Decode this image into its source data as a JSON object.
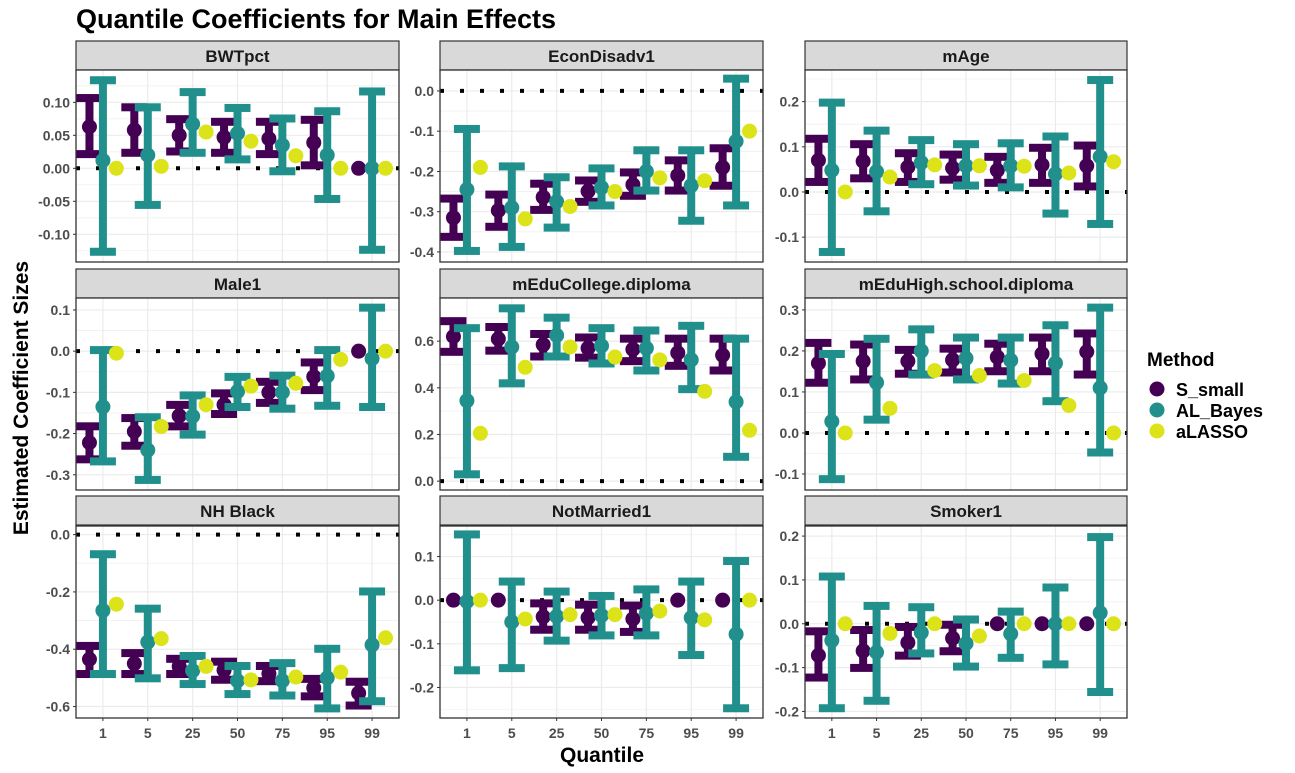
{
  "chart_data": {
    "type": "errorbar-facet",
    "title": "Quantile Coefficients for Main Effects",
    "xlabel": "Quantile",
    "ylabel": "Estimated Coefficient Sizes",
    "categories": [
      "1",
      "5",
      "25",
      "50",
      "75",
      "95",
      "99"
    ],
    "reference_line": 0,
    "grid": true,
    "legend": {
      "title": "Method",
      "position": "right",
      "entries": [
        {
          "name": "S_small",
          "color": "#440154"
        },
        {
          "name": "AL_Bayes",
          "color": "#21908C"
        },
        {
          "name": "aLASSO",
          "color": "#DCE319"
        }
      ]
    },
    "panels": [
      {
        "name": "BWTpct",
        "ylim": [
          -0.142,
          0.149
        ],
        "yticks": [
          0.1,
          0.05,
          0.0,
          -0.05,
          -0.1
        ],
        "ytick_labels": [
          "0.10",
          "0.05",
          "0.00",
          "-0.05",
          "-0.10"
        ],
        "series": [
          {
            "name": "S_small",
            "est": [
              0.063,
              0.058,
              0.05,
              0.047,
              0.045,
              0.039,
              0.0
            ],
            "lo": [
              0.02,
              0.022,
              0.024,
              0.022,
              0.02,
              0.003,
              null
            ],
            "hi": [
              0.108,
              0.094,
              0.076,
              0.072,
              0.072,
              0.075,
              null
            ]
          },
          {
            "name": "AL_Bayes",
            "est": [
              0.012,
              0.02,
              0.067,
              0.053,
              0.035,
              0.02,
              0.0
            ],
            "lo": [
              -0.128,
              -0.057,
              0.022,
              0.012,
              -0.006,
              -0.048,
              -0.125
            ],
            "hi": [
              0.135,
              0.094,
              0.117,
              0.093,
              0.077,
              0.088,
              0.118
            ]
          },
          {
            "name": "aLASSO",
            "est": [
              0.0,
              0.003,
              0.055,
              0.041,
              0.019,
              0.0,
              0.0
            ]
          }
        ]
      },
      {
        "name": "EconDisadv1",
        "ylim": [
          -0.425,
          0.052
        ],
        "yticks": [
          0.0,
          -0.1,
          -0.2,
          -0.3,
          -0.4
        ],
        "ytick_labels": [
          "0.0",
          "-0.1",
          "-0.2",
          "-0.3",
          "-0.4"
        ],
        "series": [
          {
            "name": "S_small",
            "est": [
              -0.315,
              -0.297,
              -0.264,
              -0.249,
              -0.233,
              -0.21,
              -0.19
            ],
            "lo": [
              -0.365,
              -0.34,
              -0.298,
              -0.278,
              -0.263,
              -0.25,
              -0.238
            ],
            "hi": [
              -0.265,
              -0.255,
              -0.228,
              -0.22,
              -0.2,
              -0.17,
              -0.14
            ]
          },
          {
            "name": "AL_Bayes",
            "est": [
              -0.245,
              -0.29,
              -0.275,
              -0.24,
              -0.2,
              -0.235,
              -0.125
            ],
            "lo": [
              -0.4,
              -0.39,
              -0.342,
              -0.287,
              -0.25,
              -0.325,
              -0.287
            ],
            "hi": [
              -0.092,
              -0.185,
              -0.212,
              -0.19,
              -0.145,
              -0.145,
              0.033
            ]
          },
          {
            "name": "aLASSO",
            "est": [
              -0.19,
              -0.318,
              -0.287,
              -0.25,
              -0.216,
              -0.223,
              -0.1
            ]
          }
        ]
      },
      {
        "name": "mAge",
        "ylim": [
          -0.155,
          0.27
        ],
        "yticks": [
          0.2,
          0.1,
          0.0,
          -0.1
        ],
        "ytick_labels": [
          "0.2",
          "0.1",
          "0.0",
          "-0.1"
        ],
        "series": [
          {
            "name": "S_small",
            "est": [
              0.07,
              0.068,
              0.055,
              0.053,
              0.048,
              0.06,
              0.058
            ],
            "lo": [
              0.02,
              0.028,
              0.02,
              0.025,
              0.018,
              0.018,
              0.01
            ],
            "hi": [
              0.12,
              0.108,
              0.088,
              0.085,
              0.08,
              0.1,
              0.105
            ]
          },
          {
            "name": "AL_Bayes",
            "est": [
              0.048,
              0.045,
              0.065,
              0.058,
              0.058,
              0.04,
              0.078
            ],
            "lo": [
              -0.135,
              -0.045,
              0.015,
              0.012,
              0.008,
              -0.05,
              -0.073
            ],
            "hi": [
              0.2,
              0.138,
              0.117,
              0.108,
              0.11,
              0.125,
              0.25
            ]
          },
          {
            "name": "aLASSO",
            "est": [
              0.0,
              0.033,
              0.06,
              0.058,
              0.057,
              0.042,
              0.067
            ]
          }
        ]
      },
      {
        "name": "Male1",
        "ylim": [
          -0.337,
          0.129
        ],
        "yticks": [
          0.1,
          0.0,
          -0.1,
          -0.2,
          -0.3
        ],
        "ytick_labels": [
          "0.1",
          "0.0",
          "-0.1",
          "-0.2",
          "-0.3"
        ],
        "series": [
          {
            "name": "S_small",
            "est": [
              -0.222,
              -0.195,
              -0.157,
              -0.13,
              -0.1,
              -0.062,
              0.0
            ],
            "lo": [
              -0.265,
              -0.232,
              -0.185,
              -0.155,
              -0.128,
              -0.097,
              null
            ],
            "hi": [
              -0.18,
              -0.16,
              -0.128,
              -0.1,
              -0.072,
              -0.025,
              null
            ]
          },
          {
            "name": "AL_Bayes",
            "est": [
              -0.135,
              -0.24,
              -0.158,
              -0.098,
              -0.1,
              -0.06,
              -0.018
            ],
            "lo": [
              -0.27,
              -0.315,
              -0.205,
              -0.138,
              -0.142,
              -0.135,
              -0.138
            ],
            "hi": [
              0.005,
              -0.158,
              -0.105,
              -0.06,
              -0.057,
              0.005,
              0.108
            ]
          },
          {
            "name": "aLASSO",
            "est": [
              -0.005,
              -0.183,
              -0.13,
              -0.085,
              -0.078,
              -0.02,
              0.0
            ]
          }
        ]
      },
      {
        "name": "mEduCollege.diploma",
        "ylim": [
          -0.038,
          0.785
        ],
        "yticks": [
          0.6,
          0.4,
          0.2,
          0.0
        ],
        "ytick_labels": [
          "0.6",
          "0.4",
          "0.2",
          "0.0"
        ],
        "series": [
          {
            "name": "S_small",
            "est": [
              0.62,
              0.61,
              0.585,
              0.57,
              0.565,
              0.55,
              0.54
            ],
            "lo": [
              0.55,
              0.555,
              0.53,
              0.525,
              0.51,
              0.49,
              0.47
            ],
            "hi": [
              0.69,
              0.665,
              0.635,
              0.62,
              0.615,
              0.615,
              0.615
            ]
          },
          {
            "name": "AL_Bayes",
            "est": [
              0.345,
              0.575,
              0.625,
              0.58,
              0.57,
              0.52,
              0.34
            ],
            "lo": [
              0.025,
              0.415,
              0.53,
              0.5,
              0.47,
              0.39,
              0.1
            ],
            "hi": [
              0.66,
              0.745,
              0.705,
              0.66,
              0.65,
              0.67,
              0.615
            ]
          },
          {
            "name": "aLASSO",
            "est": [
              0.205,
              0.488,
              0.575,
              0.532,
              0.52,
              0.385,
              0.218
            ]
          }
        ]
      },
      {
        "name": "mEduHigh.school.diploma",
        "ylim": [
          -0.139,
          0.329
        ],
        "yticks": [
          0.3,
          0.2,
          0.1,
          0.0,
          -0.1
        ],
        "ytick_labels": [
          "0.3",
          "0.2",
          "0.1",
          "0.0",
          "-0.1"
        ],
        "series": [
          {
            "name": "S_small",
            "est": [
              0.17,
              0.175,
              0.175,
              0.178,
              0.185,
              0.193,
              0.198
            ],
            "lo": [
              0.12,
              0.128,
              0.142,
              0.145,
              0.148,
              0.148,
              0.14
            ],
            "hi": [
              0.222,
              0.218,
              0.205,
              0.208,
              0.22,
              0.235,
              0.245
            ]
          },
          {
            "name": "AL_Bayes",
            "est": [
              0.028,
              0.123,
              0.2,
              0.182,
              0.177,
              0.17,
              0.11
            ],
            "lo": [
              -0.115,
              0.03,
              0.14,
              0.128,
              0.118,
              0.075,
              -0.05
            ],
            "hi": [
              0.195,
              0.232,
              0.255,
              0.235,
              0.235,
              0.265,
              0.308
            ]
          },
          {
            "name": "aLASSO",
            "est": [
              0.0,
              0.06,
              0.152,
              0.14,
              0.128,
              0.067,
              0.0
            ]
          }
        ]
      },
      {
        "name": "NH Black",
        "ylim": [
          -0.64,
          0.03
        ],
        "yticks": [
          0.0,
          -0.2,
          -0.4,
          -0.6
        ],
        "ytick_labels": [
          "0.0",
          "-0.2",
          "-0.4",
          "-0.6"
        ],
        "series": [
          {
            "name": "S_small",
            "est": [
              -0.435,
              -0.45,
              -0.46,
              -0.473,
              -0.485,
              -0.535,
              -0.553
            ],
            "lo": [
              -0.49,
              -0.49,
              -0.49,
              -0.51,
              -0.515,
              -0.568,
              -0.6
            ],
            "hi": [
              -0.385,
              -0.41,
              -0.43,
              -0.44,
              -0.455,
              -0.5,
              -0.51
            ]
          },
          {
            "name": "AL_Bayes",
            "est": [
              -0.265,
              -0.375,
              -0.475,
              -0.51,
              -0.51,
              -0.5,
              -0.385
            ],
            "lo": [
              -0.49,
              -0.505,
              -0.525,
              -0.56,
              -0.565,
              -0.61,
              -0.585
            ],
            "hi": [
              -0.065,
              -0.255,
              -0.42,
              -0.455,
              -0.445,
              -0.395,
              -0.195
            ]
          },
          {
            "name": "aLASSO",
            "est": [
              -0.243,
              -0.363,
              -0.46,
              -0.507,
              -0.497,
              -0.48,
              -0.36
            ]
          }
        ]
      },
      {
        "name": "NotMarried1",
        "ylim": [
          -0.27,
          0.17
        ],
        "yticks": [
          0.1,
          0.0,
          -0.1,
          -0.2
        ],
        "ytick_labels": [
          "0.1",
          "0.0",
          "-0.1",
          "-0.2"
        ],
        "series": [
          {
            "name": "S_small",
            "est": [
              0.0,
              0.0,
              -0.038,
              -0.04,
              -0.043,
              0.0,
              0.0
            ],
            "lo": [
              null,
              null,
              -0.07,
              -0.07,
              -0.075,
              null,
              null
            ],
            "hi": [
              null,
              null,
              -0.005,
              -0.008,
              -0.01,
              null,
              null
            ]
          },
          {
            "name": "AL_Bayes",
            "est": [
              -0.003,
              -0.05,
              -0.037,
              -0.035,
              -0.03,
              -0.04,
              -0.078
            ],
            "lo": [
              -0.163,
              -0.158,
              -0.095,
              -0.083,
              -0.083,
              -0.128,
              -0.25
            ],
            "hi": [
              0.153,
              0.045,
              0.022,
              0.012,
              0.027,
              0.045,
              0.092
            ]
          },
          {
            "name": "aLASSO",
            "est": [
              0.0,
              -0.043,
              -0.033,
              -0.033,
              -0.025,
              -0.045,
              0.0
            ]
          }
        ]
      },
      {
        "name": "Smoker1",
        "ylim": [
          -0.215,
          0.223
        ],
        "yticks": [
          0.2,
          0.1,
          0.0,
          -0.1,
          -0.2
        ],
        "ytick_labels": [
          "0.2",
          "0.1",
          "0.0",
          "-0.1",
          "-0.2"
        ],
        "series": [
          {
            "name": "S_small",
            "est": [
              -0.072,
              -0.062,
              -0.043,
              -0.033,
              0.0,
              0.0,
              0.0
            ],
            "lo": [
              -0.125,
              -0.103,
              -0.075,
              -0.065,
              null,
              null,
              null
            ],
            "hi": [
              -0.015,
              -0.012,
              -0.005,
              0.0,
              null,
              null,
              null
            ]
          },
          {
            "name": "AL_Bayes",
            "est": [
              -0.038,
              -0.065,
              -0.02,
              -0.045,
              -0.023,
              0.0,
              0.025
            ],
            "lo": [
              -0.195,
              -0.178,
              -0.07,
              -0.1,
              -0.08,
              -0.095,
              -0.158
            ],
            "hi": [
              0.11,
              0.043,
              0.04,
              0.012,
              0.03,
              0.085,
              0.2
            ]
          },
          {
            "name": "aLASSO",
            "est": [
              0.0,
              -0.022,
              0.0,
              -0.028,
              0.0,
              0.0,
              0.0
            ]
          }
        ]
      }
    ]
  }
}
